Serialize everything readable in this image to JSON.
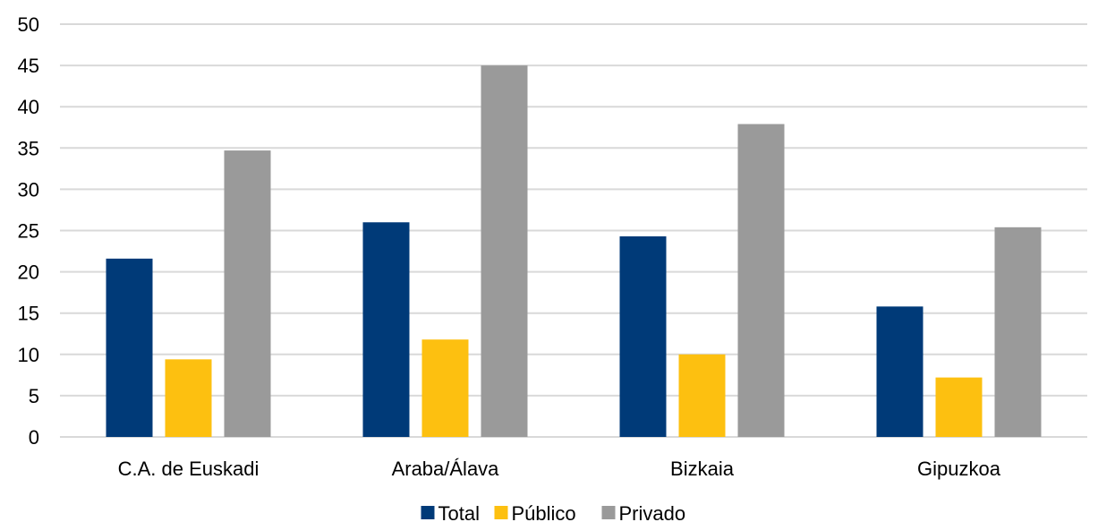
{
  "chart_data": {
    "type": "bar",
    "categories": [
      "C.A. de Euskadi",
      "Araba/Álava",
      "Bizkaia",
      "Gipuzkoa"
    ],
    "series": [
      {
        "name": "Total",
        "color": "#003a78",
        "values": [
          21.6,
          26.0,
          24.3,
          15.8
        ]
      },
      {
        "name": "Público",
        "color": "#fdc010",
        "values": [
          9.4,
          11.8,
          10.0,
          7.2
        ]
      },
      {
        "name": "Privado",
        "color": "#9a9a9a",
        "values": [
          34.7,
          45.0,
          37.9,
          25.4
        ]
      }
    ],
    "yticks": [
      "0",
      "5",
      "10",
      "15",
      "20",
      "25",
      "30",
      "35",
      "40",
      "45",
      "50"
    ],
    "ylim": [
      0,
      50
    ],
    "grid": true,
    "legend_position": "bottom",
    "title": "",
    "xlabel": "",
    "ylabel": ""
  }
}
